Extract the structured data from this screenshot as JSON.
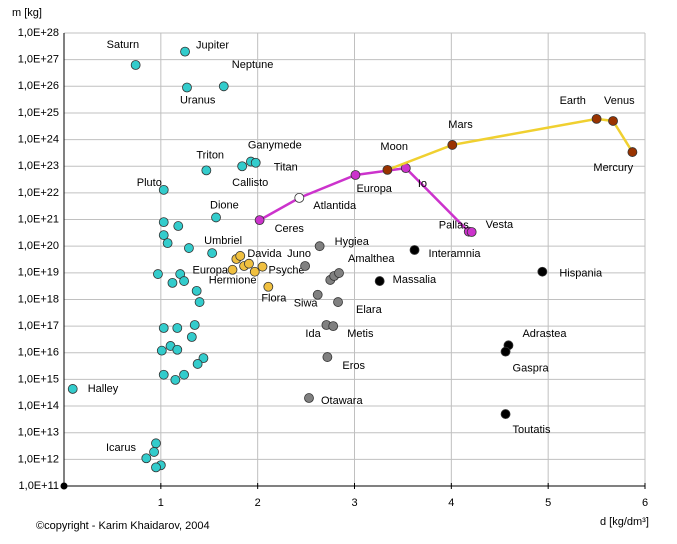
{
  "chart_data": {
    "type": "scatter",
    "ylabel": "m [kg]",
    "xlabel": "d [kg/dm³]",
    "annotation": "©copyright - Karim Khaidarov, 2004",
    "ylog": true,
    "grid": true,
    "xlim": [
      0,
      6
    ],
    "ylim": [
      100000000000.0,
      1e+28
    ],
    "xticks": [
      1,
      2,
      3,
      4,
      5,
      6
    ],
    "yticks": [
      {
        "value": 100000000000.0,
        "label": "1,0E+11"
      },
      {
        "value": 1000000000000.0,
        "label": "1,0E+12"
      },
      {
        "value": 10000000000000.0,
        "label": "1,0E+13"
      },
      {
        "value": 100000000000000.0,
        "label": "1,0E+14"
      },
      {
        "value": 1000000000000000.0,
        "label": "1,0E+15"
      },
      {
        "value": 1e+16,
        "label": "1,0E+16"
      },
      {
        "value": 1e+17,
        "label": "1,0E+17"
      },
      {
        "value": 1e+18,
        "label": "1,0E+18"
      },
      {
        "value": 1e+19,
        "label": "1,0E+19"
      },
      {
        "value": 1e+20,
        "label": "1,0E+20"
      },
      {
        "value": 1e+21,
        "label": "1,0E+21"
      },
      {
        "value": 1e+22,
        "label": "1,0E+22"
      },
      {
        "value": 1e+23,
        "label": "1,0E+23"
      },
      {
        "value": 1e+24,
        "label": "1,0E+24"
      },
      {
        "value": 1e+25,
        "label": "1,0E+25"
      },
      {
        "value": 1e+26,
        "label": "1,0E+26"
      },
      {
        "value": 1e+27,
        "label": "1,0E+27"
      },
      {
        "value": 1e+28,
        "label": "1,0E+28"
      }
    ],
    "series": [
      {
        "color": "#33cccc",
        "x": [
          0.74,
          1.25,
          1.65,
          1.27,
          1.47,
          1.93,
          1.98,
          1.84,
          1.03,
          1.57,
          1.53,
          0.09,
          0.95,
          1.03,
          1.18,
          1.03,
          1.07,
          1.29,
          0.97,
          1.2,
          1.12,
          1.24,
          1.37,
          1.4,
          1.03,
          1.17,
          1.35,
          1.32,
          1.01,
          1.1,
          1.17,
          1.44,
          1.38,
          1.03,
          1.15,
          1.24,
          0.93,
          0.85,
          1.0,
          0.95
        ],
        "values": [
          6.3e+26,
          2e+27,
          1e+26,
          9e+25,
          7e+22,
          1.5e+23,
          1.35e+23,
          1e+23,
          1.3e+22,
          1.2e+21,
          5.5e+19,
          440000000000000.0,
          4000000000000.0,
          8e+20,
          5.7e+20,
          2.6e+20,
          1.3e+20,
          8.5e+19,
          9e+18,
          9e+18,
          4.2e+18,
          4.9e+18,
          2.1e+18,
          8e+17,
          8.5e+16,
          8.5e+16,
          1.1e+17,
          3.9e+16,
          1.2e+16,
          1.8e+16,
          1.3e+16,
          6300000000000000.0,
          3800000000000000.0,
          1500000000000000.0,
          960000000000000.0,
          1500000000000000.0,
          1900000000000.0,
          1100000000000.0,
          600000000000.0,
          500000000000.0
        ],
        "labels": [
          "Saturn",
          "Jupiter",
          "Neptune",
          "Uranus",
          "Triton",
          "Ganymede",
          "Titan",
          "Callisto",
          "Pluto",
          "Dione",
          "Umbriel",
          "Halley",
          "Icarus",
          null,
          null,
          null,
          null,
          null,
          null,
          null,
          null,
          null,
          null,
          null,
          null,
          null,
          null,
          null,
          null,
          null,
          null,
          null,
          null,
          null,
          null,
          null,
          null,
          null,
          null,
          null
        ]
      },
      {
        "color": "#f0c040",
        "x": [
          1.78,
          1.82,
          1.86,
          1.91,
          1.74,
          1.97,
          2.05,
          2.11
        ],
        "values": [
          3.3e+19,
          4.3e+19,
          1.8e+19,
          2.2e+19,
          1.3e+19,
          1.1e+19,
          1.7e+19,
          3e+18
        ],
        "labels": [
          "Davida",
          null,
          null,
          null,
          "Europa",
          "Hermione",
          "Psyche",
          "Flora"
        ]
      },
      {
        "color": "#808080",
        "x": [
          2.64,
          2.49,
          2.75,
          2.79,
          2.84,
          2.62,
          2.83,
          2.71,
          2.78,
          2.72,
          2.53
        ],
        "values": [
          1e+20,
          1.8e+19,
          5.4e+18,
          7.6e+18,
          9.8e+18,
          1.5e+18,
          8e+17,
          1.1e+17,
          1e+17,
          6900000000000000.0,
          200000000000000.0
        ],
        "labels": [
          "Hygiea",
          "Juno",
          null,
          null,
          "Amalthea",
          "Siwa",
          "Elara",
          "Ida",
          "Metis",
          "Eros",
          "Otawara"
        ]
      },
      {
        "color": "#000000",
        "x": [
          3.62,
          3.26,
          4.94,
          4.59,
          4.56,
          4.56
        ],
        "values": [
          7.2e+19,
          4.9e+18,
          1.1e+19,
          1.9e+16,
          1.1e+16,
          50000000000000.0
        ],
        "labels": [
          "Interamnia",
          "Massalia",
          "Hispania",
          "Adrastea",
          "Gaspra",
          "Toutatis"
        ]
      },
      {
        "color": "#cc33cc",
        "line": true,
        "line_color": "#cc33cc",
        "marker_colors": [
          "#cc33cc",
          "#ffffff",
          "#cc33cc",
          "#cc33cc",
          "#cc33cc",
          "#cc33cc"
        ],
        "x": [
          2.02,
          2.43,
          3.01,
          3.53,
          4.18,
          4.21
        ],
        "values": [
          9.5e+20,
          6.5e+21,
          4.7e+22,
          8.5e+22,
          3.5e+20,
          3.4e+20
        ],
        "labels": [
          "Ceres",
          "Atlantida",
          "Europa",
          "Io",
          "Pallas",
          "Vesta"
        ]
      },
      {
        "color": "#993300",
        "line": true,
        "line_color": "#f0d030",
        "x": [
          3.34,
          4.01,
          5.5,
          5.67,
          5.87
        ],
        "values": [
          7.3e+22,
          6.3e+23,
          6e+24,
          5e+24,
          3.4e+23
        ],
        "labels": [
          "Moon",
          "Mars",
          "Earth",
          "Venus",
          "Mercury"
        ]
      }
    ]
  }
}
